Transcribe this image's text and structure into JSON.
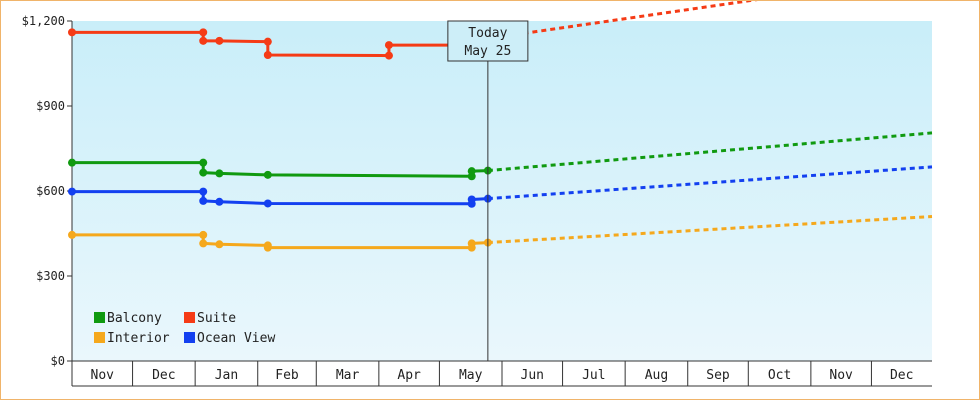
{
  "chart_data": {
    "type": "line",
    "title": "",
    "xlabel": "",
    "ylabel": "",
    "y_ticks": [
      "$0",
      "$300",
      "$600",
      "$900",
      "$1,200"
    ],
    "y_tick_values": [
      0,
      300,
      600,
      900,
      1200
    ],
    "ylim": [
      0,
      1200
    ],
    "x_months": [
      "Nov",
      "Dec",
      "Jan",
      "Feb",
      "Mar",
      "Apr",
      "May",
      "Jun",
      "Jul",
      "Aug",
      "Sep",
      "Oct",
      "Nov",
      "Dec"
    ],
    "x_range": [
      "2023-11-01",
      "2024-12-31"
    ],
    "today": {
      "line1": "Today",
      "line2": "May 25",
      "date": "2024-05-25"
    },
    "grid": false,
    "legend_position": "bottom-left",
    "background": [
      "#c9eef9",
      "#eaf7fc"
    ],
    "series": [
      {
        "name": "Balcony",
        "color": "#109a10",
        "history": [
          [
            "2023-11-01",
            700
          ],
          [
            "2024-01-05",
            700
          ],
          [
            "2024-01-05",
            665
          ],
          [
            "2024-01-13",
            662
          ],
          [
            "2024-02-06",
            657
          ],
          [
            "2024-05-17",
            652
          ],
          [
            "2024-05-17",
            670
          ],
          [
            "2024-05-25",
            672
          ]
        ],
        "forecast": [
          [
            "2024-05-25",
            672
          ],
          [
            "2024-12-31",
            805
          ]
        ]
      },
      {
        "name": "Suite",
        "color": "#f53b16",
        "history": [
          [
            "2023-11-01",
            1160
          ],
          [
            "2024-01-05",
            1160
          ],
          [
            "2024-01-05",
            1130
          ],
          [
            "2024-01-13",
            1130
          ],
          [
            "2024-02-06",
            1127
          ],
          [
            "2024-02-06",
            1080
          ],
          [
            "2024-04-06",
            1078
          ],
          [
            "2024-04-06",
            1115
          ],
          [
            "2024-05-17",
            1115
          ],
          [
            "2024-05-17",
            1135
          ],
          [
            "2024-05-25",
            1138
          ]
        ],
        "forecast": [
          [
            "2024-05-25",
            1138
          ],
          [
            "2024-12-31",
            1365
          ]
        ]
      },
      {
        "name": "Interior",
        "color": "#f5a81c",
        "history": [
          [
            "2023-11-01",
            445
          ],
          [
            "2024-01-05",
            445
          ],
          [
            "2024-01-05",
            415
          ],
          [
            "2024-01-13",
            412
          ],
          [
            "2024-02-06",
            408
          ],
          [
            "2024-02-06",
            400
          ],
          [
            "2024-05-17",
            400
          ],
          [
            "2024-05-17",
            415
          ],
          [
            "2024-05-25",
            418
          ]
        ],
        "forecast": [
          [
            "2024-05-25",
            418
          ],
          [
            "2024-12-31",
            510
          ]
        ]
      },
      {
        "name": "Ocean View",
        "color": "#1340f0",
        "history": [
          [
            "2023-11-01",
            598
          ],
          [
            "2024-01-05",
            598
          ],
          [
            "2024-01-05",
            565
          ],
          [
            "2024-01-13",
            562
          ],
          [
            "2024-02-06",
            556
          ],
          [
            "2024-05-17",
            555
          ],
          [
            "2024-05-17",
            570
          ],
          [
            "2024-05-25",
            573
          ]
        ],
        "forecast": [
          [
            "2024-05-25",
            573
          ],
          [
            "2024-12-31",
            685
          ]
        ]
      }
    ]
  }
}
